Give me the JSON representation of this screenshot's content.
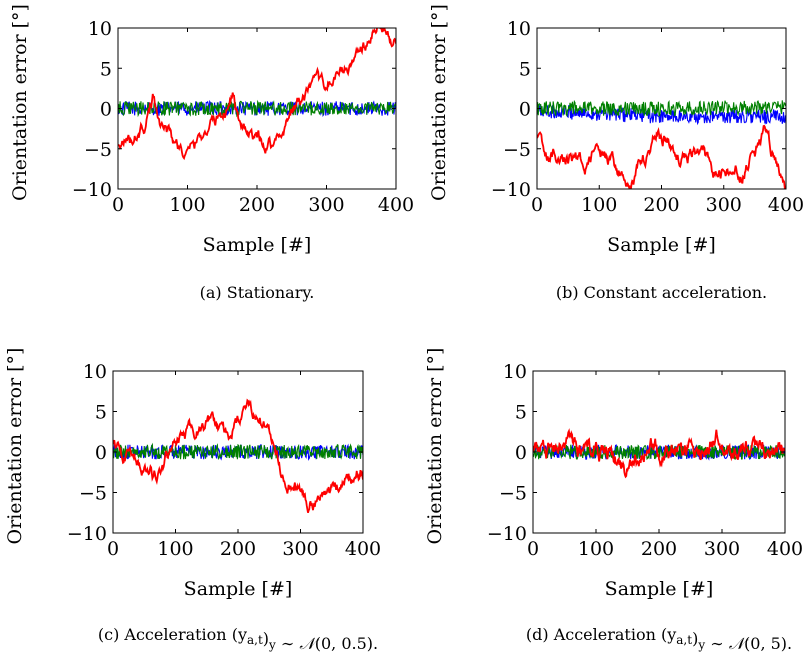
{
  "chart_data": [
    {
      "type": "line",
      "caption": "(a) Stationary.",
      "xlabel": "Sample [#]",
      "ylabel": "Orientation error [°]",
      "xlim": [
        0,
        400
      ],
      "ylim": [
        -10,
        10
      ],
      "xticks": [
        "0",
        "100",
        "200",
        "300",
        "400"
      ],
      "yticks": [
        "−10",
        "−5",
        "0",
        "5",
        "10"
      ],
      "series": [
        {
          "color": "#0000ff",
          "knots": [
            [
              0,
              0
            ],
            [
              400,
              0
            ]
          ],
          "noise": 0.9
        },
        {
          "color": "#008000",
          "knots": [
            [
              0,
              0
            ],
            [
              400,
              0
            ]
          ],
          "noise": 0.9
        },
        {
          "color": "#ff0000",
          "knots": [
            [
              0,
              -4
            ],
            [
              20,
              -4
            ],
            [
              40,
              -2
            ],
            [
              50,
              1
            ],
            [
              60,
              -1
            ],
            [
              80,
              -4
            ],
            [
              100,
              -6
            ],
            [
              130,
              -2
            ],
            [
              150,
              -1
            ],
            [
              165,
              2
            ],
            [
              180,
              -3
            ],
            [
              210,
              -4.5
            ],
            [
              230,
              -4
            ],
            [
              250,
              0
            ],
            [
              280,
              2
            ],
            [
              300,
              3
            ],
            [
              330,
              5
            ],
            [
              360,
              8
            ],
            [
              375,
              10
            ],
            [
              390,
              9
            ],
            [
              400,
              8.5
            ]
          ],
          "noise": 1.2
        }
      ]
    },
    {
      "type": "line",
      "caption": "(b) Constant acceleration.",
      "xlabel": "Sample [#]",
      "ylabel": "Orientation error [°]",
      "xlim": [
        0,
        400
      ],
      "ylim": [
        -10,
        10
      ],
      "xticks": [
        "0",
        "100",
        "200",
        "300",
        "400"
      ],
      "yticks": [
        "−10",
        "−5",
        "0",
        "5",
        "10"
      ],
      "series": [
        {
          "color": "#0000ff",
          "knots": [
            [
              0,
              -0.3
            ],
            [
              200,
              -1
            ],
            [
              400,
              -1
            ]
          ],
          "noise": 0.9
        },
        {
          "color": "#008000",
          "knots": [
            [
              0,
              0
            ],
            [
              200,
              0
            ],
            [
              400,
              0.2
            ]
          ],
          "noise": 0.9
        },
        {
          "color": "#ff0000",
          "knots": [
            [
              0,
              -4
            ],
            [
              20,
              -6
            ],
            [
              50,
              -5.5
            ],
            [
              80,
              -7
            ],
            [
              100,
              -5
            ],
            [
              120,
              -7
            ],
            [
              150,
              -10
            ],
            [
              175,
              -6
            ],
            [
              190,
              -3
            ],
            [
              205,
              -3.5
            ],
            [
              230,
              -6
            ],
            [
              260,
              -5
            ],
            [
              280,
              -8
            ],
            [
              300,
              -8.5
            ],
            [
              330,
              -8
            ],
            [
              350,
              -6
            ],
            [
              365,
              -3
            ],
            [
              380,
              -6
            ],
            [
              400,
              -10
            ]
          ],
          "noise": 1.2
        }
      ]
    },
    {
      "type": "line",
      "caption": "(c) Acceleration (y_{a,t})_y ∼ N(0, 0.5).",
      "xlabel": "Sample [#]",
      "ylabel": "Orientation error [°]",
      "xlim": [
        0,
        400
      ],
      "ylim": [
        -10,
        10
      ],
      "xticks": [
        "0",
        "100",
        "200",
        "300",
        "400"
      ],
      "yticks": [
        "−10",
        "−5",
        "0",
        "5",
        "10"
      ],
      "series": [
        {
          "color": "#0000ff",
          "knots": [
            [
              0,
              0
            ],
            [
              400,
              0
            ]
          ],
          "noise": 0.9
        },
        {
          "color": "#008000",
          "knots": [
            [
              0,
              0
            ],
            [
              400,
              0
            ]
          ],
          "noise": 0.9
        },
        {
          "color": "#ff0000",
          "knots": [
            [
              0,
              0.5
            ],
            [
              20,
              0
            ],
            [
              45,
              -2
            ],
            [
              65,
              -3
            ],
            [
              85,
              -1
            ],
            [
              110,
              2
            ],
            [
              140,
              3
            ],
            [
              160,
              4
            ],
            [
              185,
              2
            ],
            [
              200,
              3.5
            ],
            [
              215,
              6.5
            ],
            [
              235,
              5
            ],
            [
              255,
              1
            ],
            [
              270,
              -2
            ],
            [
              290,
              -4
            ],
            [
              310,
              -6.5
            ],
            [
              340,
              -5
            ],
            [
              370,
              -4
            ],
            [
              400,
              -2.5
            ]
          ],
          "noise": 1.2
        }
      ]
    },
    {
      "type": "line",
      "caption": "(d) Acceleration (y_{a,t})_y ∼ N(0, 5).",
      "xlabel": "Sample [#]",
      "ylabel": "Orientation error [°]",
      "xlim": [
        0,
        400
      ],
      "ylim": [
        -10,
        10
      ],
      "xticks": [
        "0",
        "100",
        "200",
        "300",
        "400"
      ],
      "yticks": [
        "−10",
        "−5",
        "0",
        "5",
        "10"
      ],
      "series": [
        {
          "color": "#0000ff",
          "knots": [
            [
              0,
              0
            ],
            [
              400,
              0
            ]
          ],
          "noise": 0.9
        },
        {
          "color": "#008000",
          "knots": [
            [
              0,
              0
            ],
            [
              400,
              0
            ]
          ],
          "noise": 0.9
        },
        {
          "color": "#ff0000",
          "knots": [
            [
              0,
              -0.5
            ],
            [
              40,
              0.5
            ],
            [
              80,
              0
            ],
            [
              120,
              0
            ],
            [
              145,
              -2.5
            ],
            [
              170,
              0
            ],
            [
              200,
              0.5
            ],
            [
              240,
              0
            ],
            [
              270,
              0.5
            ],
            [
              290,
              2
            ],
            [
              320,
              0
            ],
            [
              360,
              1
            ],
            [
              400,
              0
            ]
          ],
          "noise": 1.6
        }
      ]
    }
  ]
}
